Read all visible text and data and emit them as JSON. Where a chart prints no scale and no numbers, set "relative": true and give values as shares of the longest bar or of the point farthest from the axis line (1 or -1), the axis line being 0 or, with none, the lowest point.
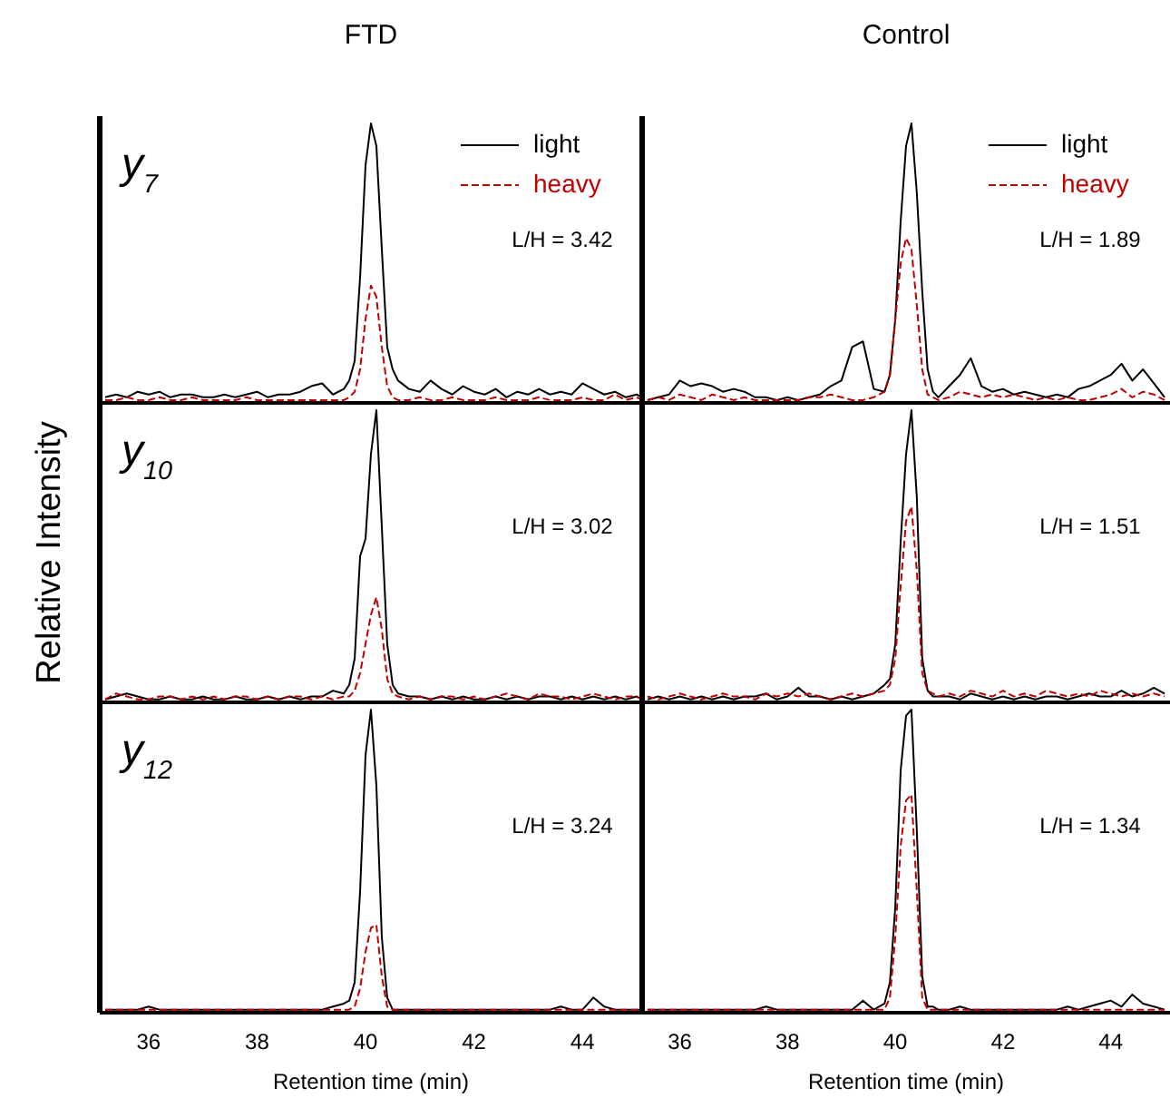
{
  "chart_data": [
    {
      "type": "line",
      "title": "FTD",
      "subtitle": "y$_{7}$",
      "relative": true,
      "xlim": [
        35.1,
        45.1
      ],
      "xticks": [
        36,
        38,
        40,
        42,
        44
      ],
      "tick_labels": false,
      "legend": "top right",
      "annotations": [
        "L/H = 3.42"
      ],
      "x": [
        35.2,
        35.4,
        35.6,
        35.8,
        36.0,
        36.2,
        36.4,
        36.6,
        36.8,
        37.0,
        37.2,
        37.4,
        37.6,
        37.8,
        38.0,
        38.2,
        38.4,
        38.6,
        38.8,
        39.0,
        39.2,
        39.4,
        39.6,
        39.7,
        39.8,
        39.9,
        40.0,
        40.1,
        40.2,
        40.3,
        40.4,
        40.5,
        40.6,
        40.8,
        41.0,
        41.2,
        41.4,
        41.6,
        41.8,
        42.0,
        42.2,
        42.4,
        42.6,
        42.8,
        43.0,
        43.2,
        43.4,
        43.6,
        43.8,
        44.0,
        44.2,
        44.4,
        44.6,
        44.8,
        45.0,
        45.1
      ],
      "series": [
        {
          "name": "light",
          "color": "#000000",
          "line_style": "solid",
          "values": [
            0.02,
            0.03,
            0.02,
            0.04,
            0.03,
            0.04,
            0.02,
            0.03,
            0.03,
            0.02,
            0.02,
            0.03,
            0.02,
            0.03,
            0.04,
            0.02,
            0.03,
            0.03,
            0.04,
            0.06,
            0.07,
            0.03,
            0.05,
            0.08,
            0.15,
            0.45,
            0.85,
            1.0,
            0.92,
            0.55,
            0.2,
            0.12,
            0.08,
            0.05,
            0.04,
            0.08,
            0.05,
            0.03,
            0.06,
            0.04,
            0.03,
            0.05,
            0.02,
            0.04,
            0.03,
            0.05,
            0.03,
            0.04,
            0.03,
            0.07,
            0.05,
            0.03,
            0.04,
            0.02,
            0.03,
            0.02
          ]
        },
        {
          "name": "heavy",
          "color": "#c00000",
          "line_style": "dashed",
          "values": [
            0.01,
            0.01,
            0.02,
            0.01,
            0.01,
            0.02,
            0.01,
            0.01,
            0.02,
            0.01,
            0.01,
            0.01,
            0.01,
            0.02,
            0.01,
            0.01,
            0.01,
            0.01,
            0.01,
            0.01,
            0.01,
            0.01,
            0.01,
            0.02,
            0.04,
            0.12,
            0.3,
            0.42,
            0.38,
            0.2,
            0.06,
            0.02,
            0.01,
            0.01,
            0.02,
            0.01,
            0.01,
            0.02,
            0.01,
            0.01,
            0.01,
            0.02,
            0.01,
            0.01,
            0.01,
            0.02,
            0.01,
            0.01,
            0.01,
            0.02,
            0.01,
            0.01,
            0.03,
            0.01,
            0.02,
            0.01
          ]
        }
      ]
    },
    {
      "type": "line",
      "title": "Control",
      "relative": true,
      "xlim": [
        35.3,
        45.1
      ],
      "xticks": [
        36,
        38,
        40,
        42,
        44
      ],
      "tick_labels": false,
      "legend": "top right",
      "annotations": [
        "L/H = 1.89"
      ],
      "x": [
        35.4,
        35.6,
        35.8,
        36.0,
        36.2,
        36.4,
        36.6,
        36.8,
        37.0,
        37.2,
        37.4,
        37.6,
        37.8,
        38.0,
        38.2,
        38.4,
        38.6,
        38.8,
        39.0,
        39.2,
        39.4,
        39.6,
        39.8,
        39.9,
        40.0,
        40.1,
        40.2,
        40.3,
        40.4,
        40.5,
        40.6,
        40.7,
        40.8,
        41.0,
        41.2,
        41.4,
        41.6,
        41.8,
        42.0,
        42.2,
        42.4,
        42.6,
        42.8,
        43.0,
        43.2,
        43.4,
        43.6,
        43.8,
        44.0,
        44.2,
        44.4,
        44.6,
        44.8,
        45.0
      ],
      "series": [
        {
          "name": "light",
          "color": "#000000",
          "line_style": "solid",
          "values": [
            0.01,
            0.02,
            0.03,
            0.08,
            0.06,
            0.07,
            0.06,
            0.04,
            0.05,
            0.04,
            0.02,
            0.02,
            0.01,
            0.02,
            0.01,
            0.02,
            0.03,
            0.06,
            0.08,
            0.2,
            0.22,
            0.05,
            0.04,
            0.1,
            0.3,
            0.65,
            0.92,
            1.0,
            0.75,
            0.4,
            0.12,
            0.04,
            0.02,
            0.06,
            0.1,
            0.16,
            0.06,
            0.04,
            0.05,
            0.03,
            0.04,
            0.03,
            0.02,
            0.03,
            0.02,
            0.05,
            0.06,
            0.08,
            0.1,
            0.14,
            0.08,
            0.12,
            0.07,
            0.02
          ]
        },
        {
          "name": "heavy",
          "color": "#c00000",
          "line_style": "dashed",
          "values": [
            0.01,
            0.02,
            0.01,
            0.03,
            0.02,
            0.01,
            0.03,
            0.02,
            0.01,
            0.02,
            0.01,
            0.01,
            0.01,
            0.01,
            0.01,
            0.02,
            0.02,
            0.03,
            0.02,
            0.01,
            0.01,
            0.02,
            0.04,
            0.1,
            0.3,
            0.5,
            0.59,
            0.55,
            0.35,
            0.12,
            0.03,
            0.02,
            0.01,
            0.02,
            0.04,
            0.03,
            0.02,
            0.03,
            0.02,
            0.03,
            0.02,
            0.01,
            0.02,
            0.01,
            0.02,
            0.01,
            0.01,
            0.02,
            0.03,
            0.05,
            0.02,
            0.04,
            0.03,
            0.01
          ]
        }
      ]
    },
    {
      "type": "line",
      "subtitle": "y$_{10}$",
      "ylabel": "Relative Intensity",
      "relative": true,
      "xlim": [
        35.1,
        45.1
      ],
      "xticks": [
        36,
        38,
        40,
        42,
        44
      ],
      "tick_labels": false,
      "annotations": [
        "L/H = 3.02"
      ],
      "x": [
        35.2,
        35.4,
        35.6,
        35.8,
        36.0,
        36.2,
        36.4,
        36.6,
        36.8,
        37.0,
        37.2,
        37.4,
        37.6,
        37.8,
        38.0,
        38.2,
        38.4,
        38.6,
        38.8,
        39.0,
        39.2,
        39.4,
        39.6,
        39.7,
        39.8,
        39.9,
        40.0,
        40.1,
        40.2,
        40.3,
        40.4,
        40.5,
        40.6,
        40.8,
        41.0,
        41.2,
        41.4,
        41.6,
        41.8,
        42.0,
        42.2,
        42.4,
        42.6,
        42.8,
        43.0,
        43.2,
        43.4,
        43.6,
        43.8,
        44.0,
        44.2,
        44.4,
        44.6,
        44.8,
        45.0,
        45.1
      ],
      "series": [
        {
          "color": "#000000",
          "line_style": "solid",
          "values": [
            0.01,
            0.02,
            0.03,
            0.02,
            0.01,
            0.01,
            0.02,
            0.01,
            0.01,
            0.02,
            0.01,
            0.01,
            0.02,
            0.01,
            0.01,
            0.02,
            0.01,
            0.02,
            0.01,
            0.02,
            0.02,
            0.04,
            0.03,
            0.06,
            0.15,
            0.5,
            0.56,
            0.85,
            1.0,
            0.6,
            0.2,
            0.06,
            0.03,
            0.02,
            0.02,
            0.01,
            0.02,
            0.01,
            0.02,
            0.01,
            0.01,
            0.02,
            0.01,
            0.02,
            0.01,
            0.02,
            0.02,
            0.01,
            0.02,
            0.01,
            0.02,
            0.01,
            0.02,
            0.01,
            0.02,
            0.01
          ]
        },
        {
          "color": "#c00000",
          "line_style": "dashed",
          "values": [
            0.01,
            0.03,
            0.02,
            0.01,
            0.01,
            0.02,
            0.02,
            0.01,
            0.02,
            0.01,
            0.02,
            0.01,
            0.02,
            0.02,
            0.01,
            0.02,
            0.01,
            0.02,
            0.02,
            0.01,
            0.02,
            0.01,
            0.02,
            0.02,
            0.04,
            0.1,
            0.2,
            0.3,
            0.36,
            0.25,
            0.08,
            0.03,
            0.02,
            0.01,
            0.02,
            0.01,
            0.02,
            0.02,
            0.01,
            0.02,
            0.01,
            0.02,
            0.03,
            0.02,
            0.01,
            0.03,
            0.02,
            0.02,
            0.01,
            0.02,
            0.03,
            0.02,
            0.01,
            0.02,
            0.02,
            0.01
          ]
        }
      ]
    },
    {
      "type": "line",
      "relative": true,
      "xlim": [
        35.3,
        45.1
      ],
      "xticks": [
        36,
        38,
        40,
        42,
        44
      ],
      "tick_labels": false,
      "annotations": [
        "L/H = 1.51"
      ],
      "x": [
        35.4,
        35.6,
        35.8,
        36.0,
        36.2,
        36.4,
        36.6,
        36.8,
        37.0,
        37.2,
        37.4,
        37.6,
        37.8,
        38.0,
        38.2,
        38.4,
        38.6,
        38.8,
        39.0,
        39.2,
        39.4,
        39.6,
        39.8,
        39.9,
        40.0,
        40.1,
        40.2,
        40.3,
        40.4,
        40.5,
        40.6,
        40.7,
        40.8,
        41.0,
        41.2,
        41.4,
        41.6,
        41.8,
        42.0,
        42.2,
        42.4,
        42.6,
        42.8,
        43.0,
        43.2,
        43.4,
        43.6,
        43.8,
        44.0,
        44.2,
        44.4,
        44.6,
        44.8,
        45.0
      ],
      "series": [
        {
          "color": "#000000",
          "line_style": "solid",
          "values": [
            0.01,
            0.02,
            0.01,
            0.02,
            0.01,
            0.02,
            0.01,
            0.02,
            0.01,
            0.02,
            0.02,
            0.03,
            0.01,
            0.02,
            0.05,
            0.02,
            0.02,
            0.01,
            0.02,
            0.01,
            0.02,
            0.03,
            0.06,
            0.08,
            0.2,
            0.55,
            0.85,
            1.0,
            0.7,
            0.15,
            0.04,
            0.02,
            0.02,
            0.02,
            0.01,
            0.03,
            0.02,
            0.01,
            0.02,
            0.01,
            0.02,
            0.01,
            0.02,
            0.02,
            0.01,
            0.02,
            0.03,
            0.02,
            0.02,
            0.04,
            0.02,
            0.03,
            0.05,
            0.03
          ]
        },
        {
          "color": "#c00000",
          "line_style": "dashed",
          "values": [
            0.02,
            0.01,
            0.02,
            0.03,
            0.02,
            0.01,
            0.02,
            0.03,
            0.02,
            0.02,
            0.01,
            0.03,
            0.02,
            0.03,
            0.02,
            0.03,
            0.02,
            0.01,
            0.02,
            0.03,
            0.02,
            0.03,
            0.04,
            0.06,
            0.15,
            0.4,
            0.62,
            0.67,
            0.45,
            0.1,
            0.04,
            0.03,
            0.02,
            0.03,
            0.02,
            0.04,
            0.03,
            0.02,
            0.04,
            0.02,
            0.03,
            0.02,
            0.04,
            0.03,
            0.02,
            0.03,
            0.02,
            0.04,
            0.03,
            0.02,
            0.03,
            0.02,
            0.03,
            0.02
          ]
        }
      ]
    },
    {
      "type": "line",
      "subtitle": "y$_{12}$",
      "xlabel": "Retention time (min)",
      "relative": true,
      "xlim": [
        35.1,
        45.1
      ],
      "xticks": [
        36,
        38,
        40,
        42,
        44
      ],
      "tick_labels": "x",
      "annotations": [
        "L/H = 3.24"
      ],
      "x": [
        35.2,
        35.4,
        35.6,
        35.8,
        36.0,
        36.2,
        36.4,
        36.6,
        36.8,
        37.0,
        37.2,
        37.4,
        37.6,
        37.8,
        38.0,
        38.2,
        38.4,
        38.6,
        38.8,
        39.0,
        39.2,
        39.4,
        39.6,
        39.7,
        39.8,
        39.9,
        40.0,
        40.1,
        40.2,
        40.3,
        40.4,
        40.5,
        40.6,
        40.8,
        41.0,
        41.2,
        41.4,
        41.6,
        41.8,
        42.0,
        42.2,
        42.4,
        42.6,
        42.8,
        43.0,
        43.2,
        43.4,
        43.6,
        43.8,
        44.0,
        44.2,
        44.4,
        44.6,
        44.8,
        45.0,
        45.1
      ],
      "series": [
        {
          "color": "#000000",
          "line_style": "solid",
          "values": [
            0.01,
            0.01,
            0.01,
            0.01,
            0.02,
            0.01,
            0.01,
            0.01,
            0.01,
            0.01,
            0.01,
            0.01,
            0.01,
            0.01,
            0.01,
            0.01,
            0.01,
            0.01,
            0.01,
            0.01,
            0.01,
            0.02,
            0.03,
            0.04,
            0.1,
            0.4,
            0.85,
            1.0,
            0.75,
            0.25,
            0.05,
            0.01,
            0.01,
            0.01,
            0.01,
            0.01,
            0.01,
            0.01,
            0.01,
            0.01,
            0.01,
            0.01,
            0.01,
            0.01,
            0.01,
            0.01,
            0.01,
            0.02,
            0.01,
            0.01,
            0.05,
            0.02,
            0.01,
            0.01,
            0.01,
            0.01
          ]
        },
        {
          "color": "#c00000",
          "line_style": "dashed",
          "values": [
            0.01,
            0.01,
            0.01,
            0.01,
            0.01,
            0.01,
            0.01,
            0.01,
            0.01,
            0.01,
            0.01,
            0.01,
            0.01,
            0.01,
            0.01,
            0.01,
            0.01,
            0.01,
            0.01,
            0.01,
            0.01,
            0.01,
            0.01,
            0.01,
            0.02,
            0.08,
            0.2,
            0.28,
            0.29,
            0.12,
            0.02,
            0.01,
            0.01,
            0.01,
            0.01,
            0.01,
            0.01,
            0.01,
            0.01,
            0.01,
            0.01,
            0.01,
            0.01,
            0.01,
            0.01,
            0.01,
            0.01,
            0.01,
            0.01,
            0.01,
            0.01,
            0.01,
            0.01,
            0.01,
            0.01,
            0.01
          ]
        }
      ]
    },
    {
      "type": "line",
      "xlabel": "Retention time (min)",
      "relative": true,
      "xlim": [
        35.3,
        45.1
      ],
      "xticks": [
        36,
        38,
        40,
        42,
        44
      ],
      "tick_labels": "x",
      "annotations": [
        "L/H = 1.34"
      ],
      "x": [
        35.4,
        35.6,
        35.8,
        36.0,
        36.2,
        36.4,
        36.6,
        36.8,
        37.0,
        37.2,
        37.4,
        37.6,
        37.8,
        38.0,
        38.2,
        38.4,
        38.6,
        38.8,
        39.0,
        39.2,
        39.4,
        39.6,
        39.8,
        39.9,
        40.0,
        40.1,
        40.2,
        40.3,
        40.4,
        40.5,
        40.6,
        40.7,
        40.8,
        41.0,
        41.2,
        41.4,
        41.6,
        41.8,
        42.0,
        42.2,
        42.4,
        42.6,
        42.8,
        43.0,
        43.2,
        43.4,
        43.6,
        43.8,
        44.0,
        44.2,
        44.4,
        44.6,
        44.8,
        45.0
      ],
      "series": [
        {
          "color": "#000000",
          "line_style": "solid",
          "values": [
            0.01,
            0.01,
            0.01,
            0.01,
            0.01,
            0.01,
            0.01,
            0.01,
            0.01,
            0.01,
            0.01,
            0.02,
            0.01,
            0.01,
            0.01,
            0.01,
            0.01,
            0.01,
            0.01,
            0.01,
            0.04,
            0.01,
            0.03,
            0.1,
            0.35,
            0.8,
            0.98,
            1.0,
            0.6,
            0.12,
            0.02,
            0.02,
            0.01,
            0.01,
            0.02,
            0.01,
            0.01,
            0.01,
            0.01,
            0.01,
            0.01,
            0.01,
            0.01,
            0.01,
            0.02,
            0.01,
            0.02,
            0.03,
            0.04,
            0.02,
            0.06,
            0.03,
            0.02,
            0.01
          ]
        },
        {
          "color": "#c00000",
          "line_style": "dashed",
          "values": [
            0.01,
            0.01,
            0.01,
            0.01,
            0.01,
            0.01,
            0.01,
            0.01,
            0.01,
            0.01,
            0.01,
            0.01,
            0.01,
            0.01,
            0.01,
            0.01,
            0.01,
            0.01,
            0.01,
            0.01,
            0.01,
            0.01,
            0.01,
            0.05,
            0.25,
            0.55,
            0.7,
            0.72,
            0.4,
            0.05,
            0.01,
            0.01,
            0.01,
            0.01,
            0.01,
            0.01,
            0.01,
            0.01,
            0.01,
            0.01,
            0.01,
            0.01,
            0.01,
            0.01,
            0.01,
            0.01,
            0.01,
            0.01,
            0.01,
            0.01,
            0.01,
            0.01,
            0.01,
            0.01
          ]
        }
      ]
    }
  ]
}
